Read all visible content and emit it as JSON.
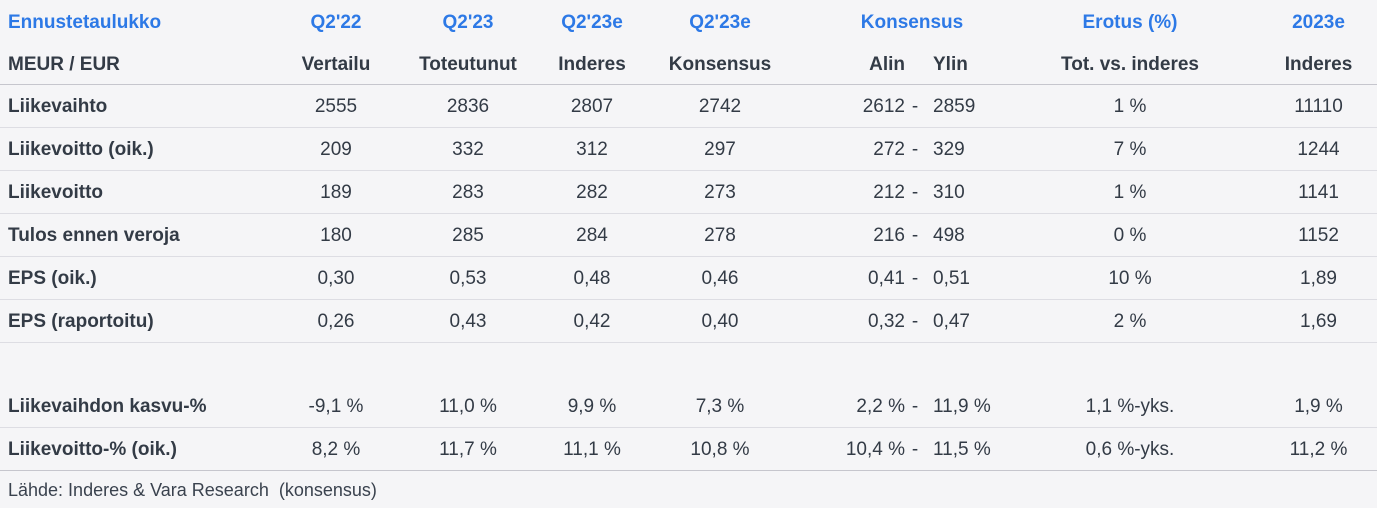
{
  "accent_color": "#2d79e6",
  "table": {
    "title": "Ennustetaulukko",
    "unit": "MEUR / EUR",
    "columns": {
      "q222": {
        "period": "Q2'22",
        "sub": "Vertailu"
      },
      "q223": {
        "period": "Q2'23",
        "sub": "Toteutunut"
      },
      "q223e_inderes": {
        "period": "Q2'23e",
        "sub": "Inderes"
      },
      "q223e_konsensus": {
        "period": "Q2'23e",
        "sub": "Konsensus"
      },
      "konsensus_range": {
        "period": "Konsensus",
        "sub_low": "Alin",
        "sub_high": "Ylin"
      },
      "erotus": {
        "period": "Erotus (%)",
        "sub": "Tot. vs. inderes"
      },
      "y2023e": {
        "period": "2023e",
        "sub": "Inderes"
      }
    },
    "range_separator": "-",
    "rows": [
      {
        "label": "Liikevaihto",
        "vertailu": "2555",
        "toteutunut": "2836",
        "inderes": "2807",
        "konsensus": "2742",
        "alin": "2612",
        "ylin": "2859",
        "erotus": "1 %",
        "y2023e": "11110"
      },
      {
        "label": "Liikevoitto (oik.)",
        "vertailu": "209",
        "toteutunut": "332",
        "inderes": "312",
        "konsensus": "297",
        "alin": "272",
        "ylin": "329",
        "erotus": "7 %",
        "y2023e": "1244"
      },
      {
        "label": "Liikevoitto",
        "vertailu": "189",
        "toteutunut": "283",
        "inderes": "282",
        "konsensus": "273",
        "alin": "212",
        "ylin": "310",
        "erotus": "1 %",
        "y2023e": "1141"
      },
      {
        "label": "Tulos ennen veroja",
        "vertailu": "180",
        "toteutunut": "285",
        "inderes": "284",
        "konsensus": "278",
        "alin": "216",
        "ylin": "498",
        "erotus": "0 %",
        "y2023e": "1152"
      },
      {
        "label": "EPS (oik.)",
        "vertailu": "0,30",
        "toteutunut": "0,53",
        "inderes": "0,48",
        "konsensus": "0,46",
        "alin": "0,41",
        "ylin": "0,51",
        "erotus": "10 %",
        "y2023e": "1,89"
      },
      {
        "label": "EPS (raportoitu)",
        "vertailu": "0,26",
        "toteutunut": "0,43",
        "inderes": "0,42",
        "konsensus": "0,40",
        "alin": "0,32",
        "ylin": "0,47",
        "erotus": "2 %",
        "y2023e": "1,69"
      },
      {
        "label": "Liikevaihdon kasvu-%",
        "vertailu": "-9,1 %",
        "toteutunut": "11,0 %",
        "inderes": "9,9 %",
        "konsensus": "7,3 %",
        "alin": "2,2 %",
        "ylin": "11,9 %",
        "erotus": "1,1 %-yks.",
        "y2023e": "1,9 %"
      },
      {
        "label": "Liikevoitto-% (oik.)",
        "vertailu": "8,2 %",
        "toteutunut": "11,7 %",
        "inderes": "11,1 %",
        "konsensus": "10,8 %",
        "alin": "10,4 %",
        "ylin": "11,5 %",
        "erotus": "0,6 %-yks.",
        "y2023e": "11,2 %"
      }
    ],
    "source": "Lähde: Inderes & Vara Research  (konsensus)"
  }
}
